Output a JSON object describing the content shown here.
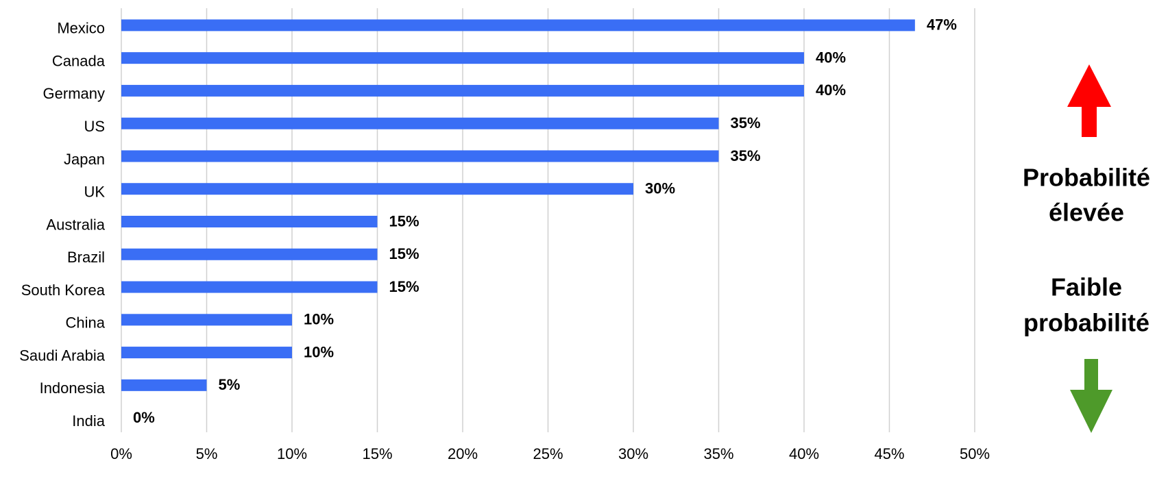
{
  "chart_data": {
    "type": "bar",
    "orientation": "horizontal",
    "categories": [
      "Mexico",
      "Canada",
      "Germany",
      "US",
      "Japan",
      "UK",
      "Australia",
      "Brazil",
      "South Korea",
      "China",
      "Saudi Arabia",
      "Indonesia",
      "India"
    ],
    "values": [
      46.5,
      40,
      40,
      35,
      35,
      30,
      15,
      15,
      15,
      10,
      10,
      5,
      0
    ],
    "value_labels": [
      "47%",
      "40%",
      "40%",
      "35%",
      "35%",
      "30%",
      "15%",
      "15%",
      "15%",
      "10%",
      "10%",
      "5%",
      "0%"
    ],
    "color": "#3a6ef5",
    "xlim": [
      0,
      50
    ],
    "xticks": [
      {
        "value": 0,
        "label": "0%"
      },
      {
        "value": 5,
        "label": "5%"
      },
      {
        "value": 10,
        "label": "10%"
      },
      {
        "value": 15,
        "label": "15%"
      },
      {
        "value": 20,
        "label": "20%"
      },
      {
        "value": 25,
        "label": "25%"
      },
      {
        "value": 30,
        "label": "30%"
      },
      {
        "value": 35,
        "label": "35%"
      },
      {
        "value": 40,
        "label": "40%"
      },
      {
        "value": 45,
        "label": "45%"
      },
      {
        "value": 50,
        "label": "50%"
      }
    ],
    "grid": true,
    "annotations": [
      "Probabilité",
      "élevée",
      "Faible",
      "probabilité"
    ]
  }
}
